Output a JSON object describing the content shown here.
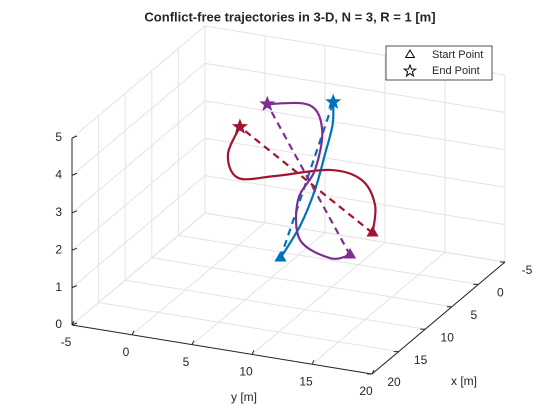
{
  "chart_data": {
    "type": "line3d",
    "title": "Conflict-free trajectories in 3-D, N = 3, R = 1 [m]",
    "xlabel": "x [m]",
    "ylabel": "y [m]",
    "xlim": [
      -5,
      20
    ],
    "ylim": [
      -5,
      20
    ],
    "zlim": [
      0,
      5
    ],
    "xticks": [
      -5,
      0,
      5,
      10,
      15,
      20
    ],
    "yticks": [
      -5,
      0,
      5,
      10,
      15,
      20
    ],
    "zticks": [
      0,
      1,
      2,
      3,
      4,
      5
    ],
    "grid": true,
    "legend_labels": [
      "Start Point",
      "End Point"
    ],
    "legend_loc": "upper right",
    "series": [
      {
        "color": "#0072bd",
        "x": [
          15.1,
          11.1,
          7.6,
          4.3,
          2.6,
          1.8
        ],
        "y": [
          10.2,
          10.1,
          9.75,
          9.1,
          9.0,
          8.7
        ],
        "z": [
          2,
          2.4,
          2.9,
          3.4,
          4,
          4.5
        ]
      },
      {
        "color": "#a2142f",
        "x": [
          11.1,
          8.6,
          6.4,
          6.9,
          11.1,
          14.7,
          12.8,
          9.3
        ],
        "y": [
          16.1,
          15.2,
          13.1,
          10.7,
          8.0,
          6.5,
          4.8,
          4.25
        ],
        "z": [
          2.5,
          2.9,
          3.2,
          3.4,
          3.6,
          3.9,
          4.2,
          4.5
        ]
      },
      {
        "color": "#7e2f8e",
        "x": [
          12.4,
          15,
          14.6,
          10,
          6.7,
          3.2,
          3.1,
          6.3
        ],
        "y": [
          14.8,
          14.3,
          11.6,
          9.4,
          9.35,
          8.4,
          7.3,
          5.2
        ],
        "z": [
          2,
          2.2,
          2.5,
          2.9,
          3.3,
          3.9,
          4.5,
          4.8
        ]
      }
    ]
  }
}
